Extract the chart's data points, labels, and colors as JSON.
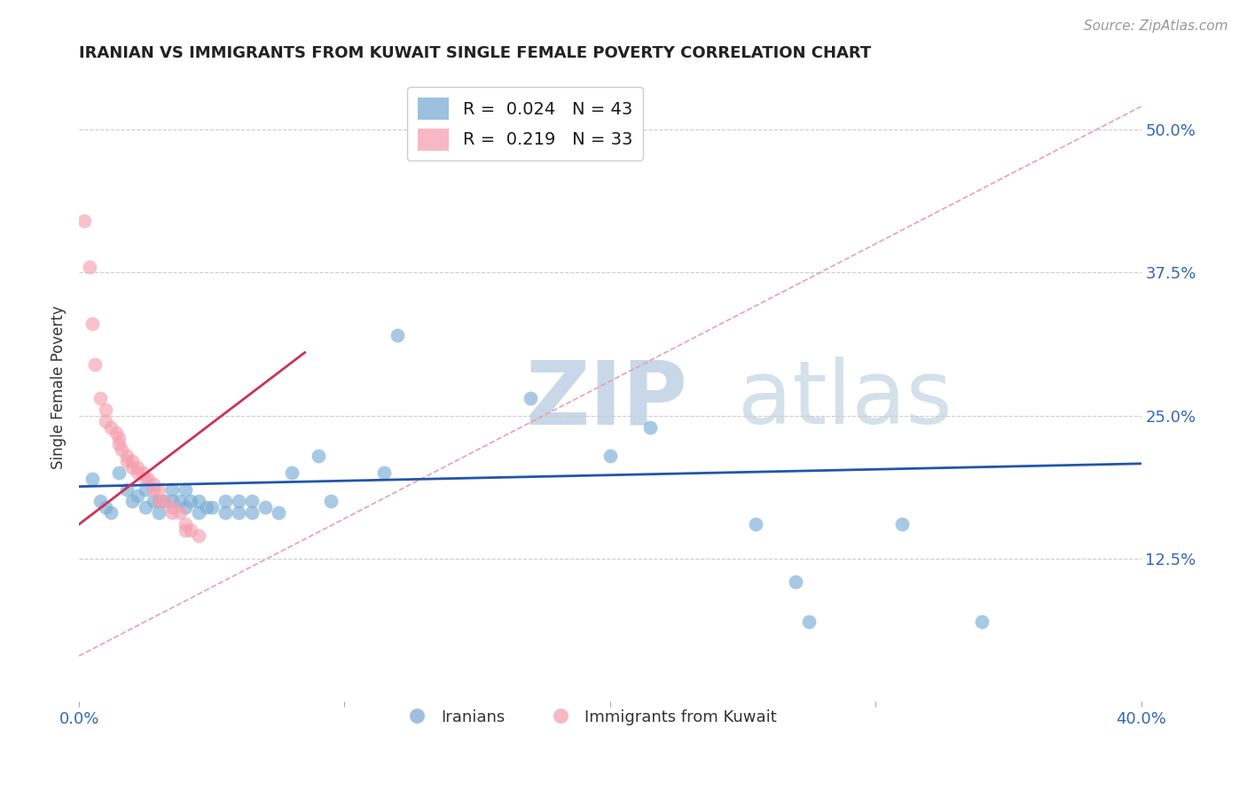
{
  "title": "IRANIAN VS IMMIGRANTS FROM KUWAIT SINGLE FEMALE POVERTY CORRELATION CHART",
  "source": "Source: ZipAtlas.com",
  "ylabel_label": "Single Female Poverty",
  "xlim": [
    0.0,
    0.4
  ],
  "ylim": [
    0.0,
    0.55
  ],
  "yticks": [
    0.125,
    0.25,
    0.375,
    0.5
  ],
  "yticklabels": [
    "12.5%",
    "25.0%",
    "37.5%",
    "50.0%"
  ],
  "grid_color": "#cccccc",
  "background_color": "#ffffff",
  "blue_color": "#7aadd4",
  "pink_color": "#f5a0b0",
  "blue_line_color": "#2255aa",
  "pink_line_color": "#cc3355",
  "dashed_line_color": "#e8a0b0",
  "blue_scatter": [
    [
      0.005,
      0.195
    ],
    [
      0.008,
      0.175
    ],
    [
      0.01,
      0.17
    ],
    [
      0.012,
      0.165
    ],
    [
      0.015,
      0.2
    ],
    [
      0.018,
      0.185
    ],
    [
      0.02,
      0.175
    ],
    [
      0.022,
      0.18
    ],
    [
      0.025,
      0.185
    ],
    [
      0.025,
      0.17
    ],
    [
      0.028,
      0.175
    ],
    [
      0.03,
      0.165
    ],
    [
      0.03,
      0.175
    ],
    [
      0.032,
      0.175
    ],
    [
      0.035,
      0.185
    ],
    [
      0.035,
      0.175
    ],
    [
      0.038,
      0.175
    ],
    [
      0.04,
      0.185
    ],
    [
      0.04,
      0.17
    ],
    [
      0.042,
      0.175
    ],
    [
      0.045,
      0.175
    ],
    [
      0.045,
      0.165
    ],
    [
      0.048,
      0.17
    ],
    [
      0.05,
      0.17
    ],
    [
      0.055,
      0.175
    ],
    [
      0.055,
      0.165
    ],
    [
      0.06,
      0.175
    ],
    [
      0.06,
      0.165
    ],
    [
      0.065,
      0.165
    ],
    [
      0.065,
      0.175
    ],
    [
      0.07,
      0.17
    ],
    [
      0.075,
      0.165
    ],
    [
      0.08,
      0.2
    ],
    [
      0.09,
      0.215
    ],
    [
      0.095,
      0.175
    ],
    [
      0.115,
      0.2
    ],
    [
      0.12,
      0.32
    ],
    [
      0.17,
      0.265
    ],
    [
      0.2,
      0.215
    ],
    [
      0.215,
      0.24
    ],
    [
      0.255,
      0.155
    ],
    [
      0.31,
      0.155
    ],
    [
      0.275,
      0.07
    ],
    [
      0.27,
      0.105
    ],
    [
      0.34,
      0.07
    ]
  ],
  "pink_scatter": [
    [
      0.002,
      0.42
    ],
    [
      0.004,
      0.38
    ],
    [
      0.005,
      0.33
    ],
    [
      0.006,
      0.295
    ],
    [
      0.008,
      0.265
    ],
    [
      0.01,
      0.255
    ],
    [
      0.01,
      0.245
    ],
    [
      0.012,
      0.24
    ],
    [
      0.014,
      0.235
    ],
    [
      0.015,
      0.23
    ],
    [
      0.015,
      0.225
    ],
    [
      0.016,
      0.22
    ],
    [
      0.018,
      0.215
    ],
    [
      0.018,
      0.21
    ],
    [
      0.02,
      0.21
    ],
    [
      0.02,
      0.205
    ],
    [
      0.022,
      0.205
    ],
    [
      0.022,
      0.2
    ],
    [
      0.024,
      0.2
    ],
    [
      0.025,
      0.195
    ],
    [
      0.026,
      0.195
    ],
    [
      0.028,
      0.19
    ],
    [
      0.028,
      0.185
    ],
    [
      0.03,
      0.185
    ],
    [
      0.03,
      0.175
    ],
    [
      0.032,
      0.175
    ],
    [
      0.035,
      0.17
    ],
    [
      0.035,
      0.165
    ],
    [
      0.038,
      0.165
    ],
    [
      0.04,
      0.155
    ],
    [
      0.04,
      0.15
    ],
    [
      0.042,
      0.15
    ],
    [
      0.045,
      0.145
    ]
  ]
}
